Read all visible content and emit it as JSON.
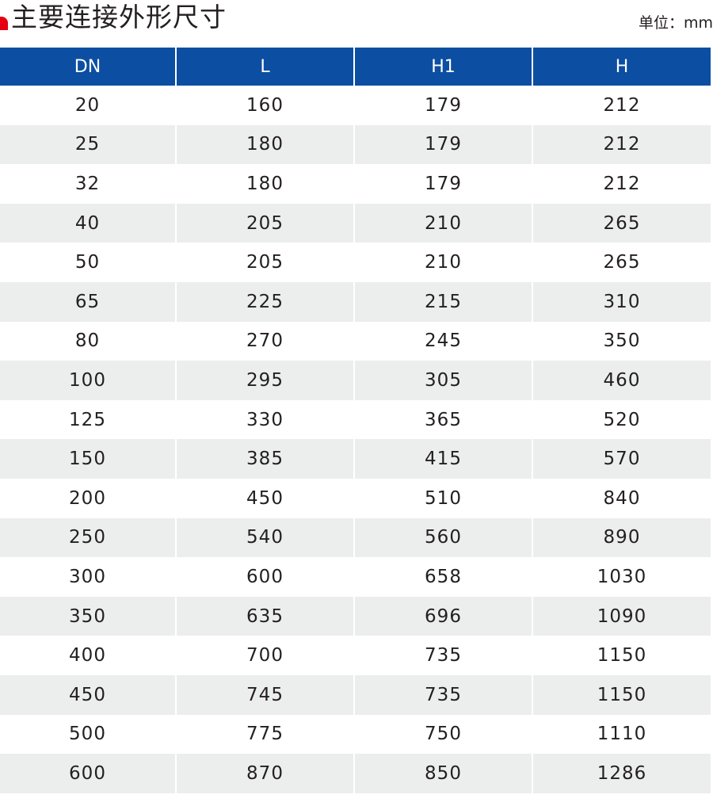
{
  "title": "主要连接外形尺寸",
  "unit_label": "单位：mm",
  "table": {
    "headers": [
      "DN",
      "L",
      "H1",
      "H"
    ],
    "rows": [
      [
        "20",
        "160",
        "179",
        "212"
      ],
      [
        "25",
        "180",
        "179",
        "212"
      ],
      [
        "32",
        "180",
        "179",
        "212"
      ],
      [
        "40",
        "205",
        "210",
        "265"
      ],
      [
        "50",
        "205",
        "210",
        "265"
      ],
      [
        "65",
        "225",
        "215",
        "310"
      ],
      [
        "80",
        "270",
        "245",
        "350"
      ],
      [
        "100",
        "295",
        "305",
        "460"
      ],
      [
        "125",
        "330",
        "365",
        "520"
      ],
      [
        "150",
        "385",
        "415",
        "570"
      ],
      [
        "200",
        "450",
        "510",
        "840"
      ],
      [
        "250",
        "540",
        "560",
        "890"
      ],
      [
        "300",
        "600",
        "658",
        "1030"
      ],
      [
        "350",
        "635",
        "696",
        "1090"
      ],
      [
        "400",
        "700",
        "735",
        "1150"
      ],
      [
        "450",
        "745",
        "735",
        "1150"
      ],
      [
        "500",
        "775",
        "750",
        "1110"
      ],
      [
        "600",
        "870",
        "850",
        "1286"
      ]
    ]
  },
  "colors": {
    "header_bg": "#0c4ea2",
    "accent": "#e60012",
    "stripe": "#eceeed"
  }
}
